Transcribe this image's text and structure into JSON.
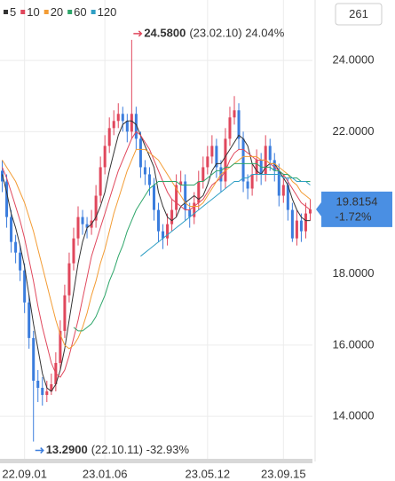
{
  "chart_data": {
    "type": "candlestick",
    "up_color": "#e0475c",
    "down_color": "#3b7ddd",
    "xlim": [
      -0.5,
      69.5
    ],
    "xticks": [
      {
        "value": 5,
        "label": "22.09.01"
      },
      {
        "value": 23,
        "label": "23.01.06"
      },
      {
        "value": 46,
        "label": "23.05.12"
      },
      {
        "value": 63,
        "label": "23.09.15"
      }
    ],
    "ylim": [
      12.73,
      25.7
    ],
    "yticks": [
      {
        "value": 14,
        "label": "14.0000"
      },
      {
        "value": 16,
        "label": "16.0000"
      },
      {
        "value": 18,
        "label": "18.0000"
      },
      {
        "value": 22,
        "label": "22.0000"
      },
      {
        "value": 24,
        "label": "24.0000"
      }
    ],
    "grid": true,
    "period_button": "261",
    "ohlc": [
      [
        20.9,
        21.2,
        20.3,
        20.6
      ],
      [
        20.6,
        20.8,
        19.3,
        19.6
      ],
      [
        19.6,
        19.8,
        18.6,
        18.9
      ],
      [
        18.9,
        19.1,
        18.3,
        18.6
      ],
      [
        18.6,
        18.8,
        17.8,
        18.1
      ],
      [
        18.1,
        18.3,
        16.9,
        17.2
      ],
      [
        17.2,
        17.4,
        15.9,
        16.2
      ],
      [
        16.2,
        16.4,
        13.29,
        15.0
      ],
      [
        15.0,
        15.3,
        14.4,
        14.8
      ],
      [
        14.8,
        15.1,
        14.3,
        14.6
      ],
      [
        14.6,
        15.0,
        14.4,
        14.7
      ],
      [
        14.7,
        15.2,
        14.6,
        14.9
      ],
      [
        14.9,
        15.8,
        14.7,
        15.5
      ],
      [
        15.5,
        16.7,
        15.3,
        16.4
      ],
      [
        16.4,
        17.7,
        16.2,
        17.4
      ],
      [
        17.4,
        18.6,
        17.2,
        18.3
      ],
      [
        18.3,
        19.3,
        18.1,
        19.0
      ],
      [
        19.0,
        19.9,
        18.8,
        19.6
      ],
      [
        19.6,
        19.8,
        19.1,
        19.4
      ],
      [
        19.4,
        19.6,
        19.0,
        19.3
      ],
      [
        19.3,
        19.8,
        19.1,
        19.5
      ],
      [
        19.5,
        20.5,
        19.3,
        20.2
      ],
      [
        20.2,
        21.3,
        20.0,
        21.0
      ],
      [
        21.0,
        21.9,
        20.8,
        21.6
      ],
      [
        21.6,
        22.4,
        21.4,
        22.1
      ],
      [
        22.1,
        22.6,
        21.9,
        22.3
      ],
      [
        22.3,
        22.8,
        22.1,
        22.5
      ],
      [
        22.5,
        22.7,
        22.0,
        22.3
      ],
      [
        22.3,
        22.5,
        21.7,
        22.0
      ],
      [
        22.0,
        24.58,
        21.8,
        22.5
      ],
      [
        22.5,
        22.7,
        21.5,
        21.8
      ],
      [
        21.8,
        22.0,
        20.7,
        21.0
      ],
      [
        21.0,
        21.2,
        20.5,
        20.8
      ],
      [
        20.8,
        21.0,
        20.2,
        20.5
      ],
      [
        20.5,
        20.7,
        19.5,
        19.8
      ],
      [
        19.8,
        20.0,
        18.9,
        19.2
      ],
      [
        19.2,
        19.4,
        18.7,
        19.0
      ],
      [
        19.0,
        19.7,
        18.8,
        19.4
      ],
      [
        19.4,
        20.1,
        19.2,
        19.8
      ],
      [
        19.8,
        20.8,
        19.6,
        20.5
      ],
      [
        20.5,
        20.9,
        20.3,
        20.6
      ],
      [
        20.6,
        20.8,
        19.5,
        19.8
      ],
      [
        19.8,
        20.0,
        19.3,
        19.6
      ],
      [
        19.6,
        20.3,
        19.4,
        20.0
      ],
      [
        20.0,
        20.9,
        19.8,
        20.6
      ],
      [
        20.6,
        21.3,
        20.4,
        21.0
      ],
      [
        21.0,
        21.6,
        20.8,
        21.3
      ],
      [
        21.3,
        21.9,
        21.1,
        21.6
      ],
      [
        21.6,
        21.8,
        20.7,
        21.0
      ],
      [
        21.0,
        21.2,
        20.3,
        20.6
      ],
      [
        20.6,
        22.1,
        20.4,
        21.8
      ],
      [
        21.8,
        22.7,
        21.6,
        22.4
      ],
      [
        22.4,
        23.0,
        22.2,
        22.6
      ],
      [
        22.6,
        22.8,
        21.5,
        21.8
      ],
      [
        21.8,
        22.0,
        20.3,
        20.6
      ],
      [
        20.6,
        20.8,
        20.1,
        20.4
      ],
      [
        20.4,
        21.1,
        20.2,
        20.8
      ],
      [
        20.8,
        21.5,
        20.6,
        21.2
      ],
      [
        21.2,
        21.4,
        20.5,
        20.8
      ],
      [
        20.8,
        21.9,
        20.6,
        21.6
      ],
      [
        21.6,
        21.8,
        20.9,
        21.2
      ],
      [
        21.2,
        21.4,
        20.6,
        20.9
      ],
      [
        20.9,
        21.1,
        19.9,
        20.2
      ],
      [
        20.2,
        20.8,
        20.0,
        20.5
      ],
      [
        20.5,
        20.7,
        19.5,
        19.8
      ],
      [
        19.8,
        20.0,
        18.9,
        19.0
      ],
      [
        19.0,
        19.8,
        18.8,
        19.5
      ],
      [
        19.5,
        19.7,
        18.9,
        19.2
      ],
      [
        19.2,
        20.0,
        19.0,
        19.7
      ],
      [
        19.7,
        20.1,
        19.5,
        19.8154
      ]
    ],
    "series": [
      {
        "name": "5",
        "color": "#333333",
        "values": [
          20.8,
          20.3,
          19.7,
          19.3,
          18.8,
          18.2,
          17.4,
          16.6,
          15.9,
          15.2,
          14.8,
          14.7,
          14.9,
          15.3,
          15.9,
          16.7,
          17.5,
          18.3,
          18.9,
          19.3,
          19.4,
          19.6,
          19.9,
          20.3,
          20.9,
          21.4,
          21.9,
          22.2,
          22.3,
          22.3,
          22.2,
          21.9,
          21.6,
          21.3,
          21.0,
          20.3,
          19.9,
          19.6,
          19.5,
          19.6,
          19.9,
          20.0,
          20.1,
          20.2,
          20.1,
          20.2,
          20.5,
          20.9,
          21.1,
          21.1,
          21.3,
          21.5,
          21.7,
          21.9,
          21.8,
          21.6,
          21.1,
          20.9,
          20.8,
          21.0,
          21.1,
          21.1,
          20.9,
          20.7,
          20.5,
          20.1,
          19.8,
          19.6,
          19.5,
          19.5
        ]
      },
      {
        "name": "10",
        "color": "#e0475c",
        "values": [
          21.0,
          20.7,
          20.3,
          19.9,
          19.5,
          19.0,
          18.4,
          17.8,
          17.1,
          16.5,
          16.0,
          15.5,
          15.2,
          15.1,
          15.3,
          15.7,
          16.2,
          16.7,
          17.3,
          17.9,
          18.5,
          18.9,
          19.3,
          19.7,
          20.1,
          20.5,
          20.9,
          21.2,
          21.5,
          21.8,
          22.0,
          21.9,
          21.7,
          21.5,
          21.2,
          20.9,
          20.6,
          20.3,
          20.1,
          20.0,
          19.9,
          19.8,
          19.8,
          19.9,
          20.0,
          20.1,
          20.3,
          20.5,
          20.6,
          20.7,
          20.9,
          21.2,
          21.4,
          21.5,
          21.5,
          21.4,
          21.3,
          21.2,
          21.2,
          21.2,
          21.1,
          21.0,
          20.9,
          20.8,
          20.6,
          20.4,
          20.2,
          20.0,
          19.9,
          19.8
        ]
      },
      {
        "name": "20",
        "color": "#f39c34",
        "values": [
          21.2,
          21.0,
          20.8,
          20.6,
          20.3,
          20.0,
          19.6,
          19.2,
          18.7,
          18.2,
          17.7,
          17.2,
          16.7,
          16.3,
          16.0,
          15.9,
          16.0,
          16.2,
          16.5,
          16.9,
          17.4,
          17.8,
          18.3,
          18.7,
          19.2,
          19.7,
          20.1,
          20.5,
          20.9,
          21.2,
          21.5,
          21.5,
          21.5,
          21.4,
          21.3,
          21.2,
          21.0,
          20.8,
          20.6,
          20.4,
          20.2,
          20.0,
          19.9,
          19.9,
          19.9,
          20.0,
          20.2,
          20.4,
          20.6,
          20.8,
          20.9,
          21.0,
          21.1,
          21.2,
          21.3,
          21.3,
          21.3,
          21.3,
          21.2,
          21.2,
          21.1,
          21.1,
          21.0,
          20.9,
          20.8,
          20.6,
          20.5,
          20.3,
          20.2,
          20.1
        ]
      },
      {
        "name": "60",
        "color": "#2ea66a",
        "values": [
          null,
          null,
          null,
          null,
          null,
          null,
          null,
          null,
          null,
          null,
          null,
          null,
          null,
          null,
          null,
          null,
          16.5,
          16.4,
          16.4,
          16.5,
          16.6,
          16.8,
          17.1,
          17.4,
          17.8,
          18.1,
          18.5,
          18.8,
          19.2,
          19.5,
          19.8,
          20.0,
          20.2,
          20.4,
          20.5,
          20.6,
          20.6,
          20.6,
          20.6,
          20.6,
          20.5,
          20.5,
          20.5,
          20.5,
          20.6,
          20.6,
          20.7,
          20.8,
          20.9,
          20.9,
          21.0,
          21.0,
          21.1,
          21.1,
          21.1,
          21.1,
          21.1,
          21.1,
          21.0,
          21.0,
          21.0,
          20.9,
          20.9,
          20.8,
          20.8,
          20.7,
          20.7,
          20.6,
          20.6,
          20.6
        ]
      },
      {
        "name": "120",
        "color": "#2f9fc4",
        "values": [
          null,
          null,
          null,
          null,
          null,
          null,
          null,
          null,
          null,
          null,
          null,
          null,
          null,
          null,
          null,
          null,
          null,
          null,
          null,
          null,
          null,
          null,
          null,
          null,
          null,
          null,
          null,
          null,
          null,
          null,
          null,
          18.5,
          18.6,
          18.7,
          18.8,
          18.9,
          19.0,
          19.1,
          19.2,
          19.3,
          19.4,
          19.5,
          19.6,
          19.7,
          19.8,
          19.9,
          20.0,
          20.1,
          20.2,
          20.3,
          20.4,
          20.5,
          20.6,
          20.6,
          20.7,
          20.7,
          20.8,
          20.8,
          20.8,
          20.8,
          20.8,
          20.8,
          20.8,
          20.7,
          20.7,
          20.7,
          20.6,
          20.6,
          20.6,
          20.5
        ]
      }
    ],
    "high_note": {
      "index": 29,
      "value": 24.58,
      "label": "24.5800",
      "text": "(23.02.10) 24.04%"
    },
    "low_note": {
      "index": 7,
      "value": 13.29,
      "label": "13.2900",
      "text": "(22.10.11) -32.93%"
    },
    "last_price": {
      "value": 19.8154,
      "label": "19.8154",
      "change": "-1.72%"
    }
  }
}
